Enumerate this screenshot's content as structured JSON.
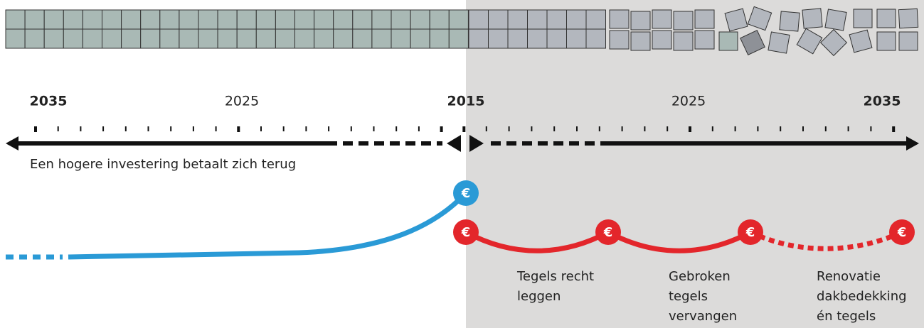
{
  "timeline": {
    "years": [
      "2035",
      "2025",
      "2015",
      "2025",
      "2035"
    ],
    "caption": "Een hogere investering betaalt zich terug"
  },
  "costs": {
    "euro": [
      "€",
      "€",
      "€",
      "€",
      "€"
    ]
  },
  "steps": [
    {
      "lines": [
        "Tegels recht",
        "leggen"
      ]
    },
    {
      "lines": [
        "Gebroken",
        "tegels",
        "vervangen"
      ]
    },
    {
      "lines": [
        "Renovatie",
        "dakbedekking",
        "én tegels"
      ]
    }
  ]
}
